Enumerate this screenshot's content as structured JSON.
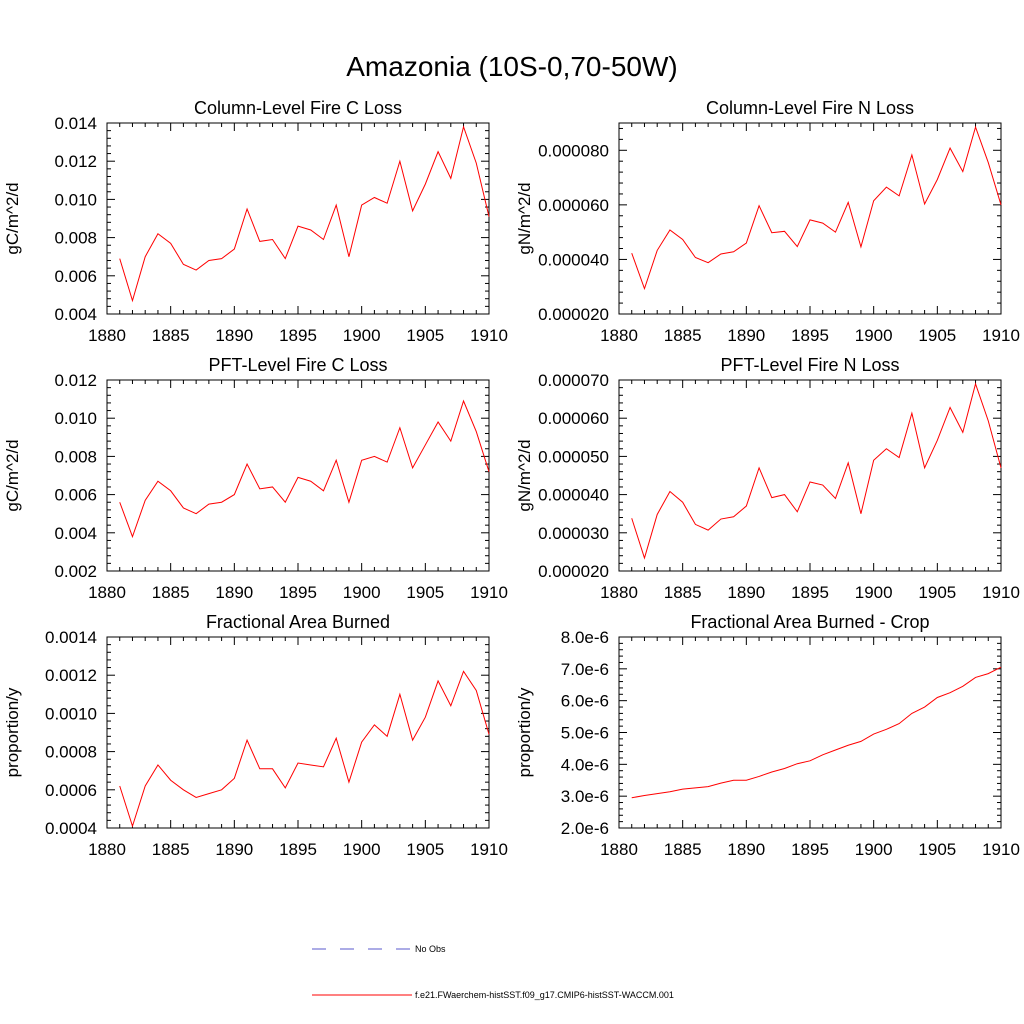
{
  "figure_title": "Amazonia (10S-0,70-50W)",
  "legend": [
    {
      "label": "No Obs",
      "color": "#5a5acd",
      "style": "dashed"
    },
    {
      "label": "f.e21.FWaerchem-histSST.f09_g17.CMIP6-histSST-WACCM.001",
      "color": "#ff0000",
      "style": "solid"
    }
  ],
  "chart_data": [
    {
      "type": "line",
      "title": "Column-Level Fire C Loss",
      "ylabel": "gC/m^2/d",
      "xlim": [
        1880,
        1910
      ],
      "ylim": [
        0.004,
        0.014
      ],
      "xticks": [
        "1880",
        "1885",
        "1890",
        "1895",
        "1900",
        "1905",
        "1910"
      ],
      "yticks": [
        "0.004",
        "0.006",
        "0.008",
        "0.010",
        "0.012",
        "0.014"
      ],
      "ytick_values": [
        0.004,
        0.006,
        0.008,
        0.01,
        0.012,
        0.014
      ],
      "x": [
        1881,
        1882,
        1883,
        1884,
        1885,
        1886,
        1887,
        1888,
        1889,
        1890,
        1891,
        1892,
        1893,
        1894,
        1895,
        1896,
        1897,
        1898,
        1899,
        1900,
        1901,
        1902,
        1903,
        1904,
        1905,
        1906,
        1907,
        1908,
        1909,
        1910
      ],
      "y": [
        0.0069,
        0.0047,
        0.007,
        0.0082,
        0.0077,
        0.0066,
        0.0063,
        0.0068,
        0.0069,
        0.0074,
        0.0095,
        0.0078,
        0.0079,
        0.0069,
        0.0086,
        0.0084,
        0.0079,
        0.0097,
        0.007,
        0.0097,
        0.0101,
        0.0098,
        0.012,
        0.0094,
        0.0108,
        0.0125,
        0.0111,
        0.0138,
        0.0119,
        0.0091
      ]
    },
    {
      "type": "line",
      "title": "Column-Level Fire N Loss",
      "ylabel": "gN/m^2/d",
      "xlim": [
        1880,
        1910
      ],
      "ylim": [
        2e-05,
        9e-05
      ],
      "xticks": [
        "1880",
        "1885",
        "1890",
        "1895",
        "1900",
        "1905",
        "1910"
      ],
      "yticks": [
        "0.000020",
        "0.000040",
        "0.000060",
        "0.000080"
      ],
      "ytick_values": [
        2e-05,
        4e-05,
        6e-05,
        8e-05
      ],
      "x": [
        1881,
        1882,
        1883,
        1884,
        1885,
        1886,
        1887,
        1888,
        1889,
        1890,
        1891,
        1892,
        1893,
        1894,
        1895,
        1896,
        1897,
        1898,
        1899,
        1900,
        1901,
        1902,
        1903,
        1904,
        1905,
        1906,
        1907,
        1908,
        1909,
        1910
      ],
      "y": [
        4.23e-05,
        2.93e-05,
        4.33e-05,
        5.08e-05,
        4.73e-05,
        4.07e-05,
        3.88e-05,
        4.2e-05,
        4.28e-05,
        4.6e-05,
        5.97e-05,
        4.98e-05,
        5.03e-05,
        4.47e-05,
        5.45e-05,
        5.33e-05,
        5e-05,
        6.09e-05,
        4.46e-05,
        6.15e-05,
        6.65e-05,
        6.33e-05,
        7.83e-05,
        6.03e-05,
        6.93e-05,
        8.08e-05,
        7.22e-05,
        8.85e-05,
        7.55e-05,
        6e-05
      ]
    },
    {
      "type": "line",
      "title": "PFT-Level Fire C Loss",
      "ylabel": "gC/m^2/d",
      "xlim": [
        1880,
        1910
      ],
      "ylim": [
        0.002,
        0.012
      ],
      "xticks": [
        "1880",
        "1885",
        "1890",
        "1895",
        "1900",
        "1905",
        "1910"
      ],
      "yticks": [
        "0.002",
        "0.004",
        "0.006",
        "0.008",
        "0.010",
        "0.012"
      ],
      "ytick_values": [
        0.002,
        0.004,
        0.006,
        0.008,
        0.01,
        0.012
      ],
      "x": [
        1881,
        1882,
        1883,
        1884,
        1885,
        1886,
        1887,
        1888,
        1889,
        1890,
        1891,
        1892,
        1893,
        1894,
        1895,
        1896,
        1897,
        1898,
        1899,
        1900,
        1901,
        1902,
        1903,
        1904,
        1905,
        1906,
        1907,
        1908,
        1909,
        1910
      ],
      "y": [
        0.0056,
        0.0038,
        0.0057,
        0.0067,
        0.0062,
        0.0053,
        0.005,
        0.0055,
        0.0056,
        0.006,
        0.0076,
        0.0063,
        0.0064,
        0.0056,
        0.0069,
        0.0067,
        0.0062,
        0.0078,
        0.0056,
        0.0078,
        0.008,
        0.0077,
        0.0095,
        0.0074,
        0.0086,
        0.0098,
        0.0088,
        0.0109,
        0.0093,
        0.0072
      ]
    },
    {
      "type": "line",
      "title": "PFT-Level Fire N Loss",
      "ylabel": "gN/m^2/d",
      "xlim": [
        1880,
        1910
      ],
      "ylim": [
        2e-05,
        7e-05
      ],
      "xticks": [
        "1880",
        "1885",
        "1890",
        "1895",
        "1900",
        "1905",
        "1910"
      ],
      "yticks": [
        "0.000020",
        "0.000030",
        "0.000040",
        "0.000050",
        "0.000060",
        "0.000070"
      ],
      "ytick_values": [
        2e-05,
        3e-05,
        4e-05,
        5e-05,
        6e-05,
        7e-05
      ],
      "x": [
        1881,
        1882,
        1883,
        1884,
        1885,
        1886,
        1887,
        1888,
        1889,
        1890,
        1891,
        1892,
        1893,
        1894,
        1895,
        1896,
        1897,
        1898,
        1899,
        1900,
        1901,
        1902,
        1903,
        1904,
        1905,
        1906,
        1907,
        1908,
        1909,
        1910
      ],
      "y": [
        3.38e-05,
        2.34e-05,
        3.48e-05,
        4.08e-05,
        3.8e-05,
        3.22e-05,
        3.07e-05,
        3.36e-05,
        3.42e-05,
        3.7e-05,
        4.7e-05,
        3.92e-05,
        4e-05,
        3.55e-05,
        4.33e-05,
        4.25e-05,
        3.9e-05,
        4.83e-05,
        3.5e-05,
        4.9e-05,
        5.2e-05,
        4.97e-05,
        6.13e-05,
        4.7e-05,
        5.42e-05,
        6.28e-05,
        5.63e-05,
        6.9e-05,
        5.93e-05,
        4.7e-05
      ]
    },
    {
      "type": "line",
      "title": "Fractional Area Burned",
      "ylabel": "proportion/y",
      "xlim": [
        1880,
        1910
      ],
      "ylim": [
        0.0004,
        0.0014
      ],
      "xticks": [
        "1880",
        "1885",
        "1890",
        "1895",
        "1900",
        "1905",
        "1910"
      ],
      "yticks": [
        "0.0004",
        "0.0006",
        "0.0008",
        "0.0010",
        "0.0012",
        "0.0014"
      ],
      "ytick_values": [
        0.0004,
        0.0006,
        0.0008,
        0.001,
        0.0012,
        0.0014
      ],
      "x": [
        1881,
        1882,
        1883,
        1884,
        1885,
        1886,
        1887,
        1888,
        1889,
        1890,
        1891,
        1892,
        1893,
        1894,
        1895,
        1896,
        1897,
        1898,
        1899,
        1900,
        1901,
        1902,
        1903,
        1904,
        1905,
        1906,
        1907,
        1908,
        1909,
        1910
      ],
      "y": [
        0.00062,
        0.00041,
        0.00062,
        0.00073,
        0.00065,
        0.0006,
        0.00056,
        0.00058,
        0.0006,
        0.00066,
        0.00086,
        0.00071,
        0.00071,
        0.00061,
        0.00074,
        0.00073,
        0.00072,
        0.00087,
        0.00064,
        0.00085,
        0.00094,
        0.00088,
        0.0011,
        0.00086,
        0.00098,
        0.00117,
        0.00104,
        0.00122,
        0.00112,
        0.00089
      ]
    },
    {
      "type": "line",
      "title": "Fractional Area Burned - Crop",
      "ylabel": "proportion/y",
      "xlim": [
        1880,
        1910
      ],
      "ylim": [
        2e-06,
        8e-06
      ],
      "xticks": [
        "1880",
        "1885",
        "1890",
        "1895",
        "1900",
        "1905",
        "1910"
      ],
      "yticks": [
        "2.0e-6",
        "3.0e-6",
        "4.0e-6",
        "5.0e-6",
        "6.0e-6",
        "7.0e-6",
        "8.0e-6"
      ],
      "ytick_values": [
        2e-06,
        3e-06,
        4e-06,
        5e-06,
        6e-06,
        7e-06,
        8e-06
      ],
      "x": [
        1881,
        1882,
        1883,
        1884,
        1885,
        1886,
        1887,
        1888,
        1889,
        1890,
        1891,
        1892,
        1893,
        1894,
        1895,
        1896,
        1897,
        1898,
        1899,
        1900,
        1901,
        1902,
        1903,
        1904,
        1905,
        1906,
        1907,
        1908,
        1909,
        1910
      ],
      "y": [
        2.95e-06,
        3.02e-06,
        3.08e-06,
        3.14e-06,
        3.22e-06,
        3.26e-06,
        3.3e-06,
        3.41e-06,
        3.5e-06,
        3.5e-06,
        3.62e-06,
        3.76e-06,
        3.87e-06,
        4.02e-06,
        4.11e-06,
        4.3e-06,
        4.45e-06,
        4.6e-06,
        4.72e-06,
        4.95e-06,
        5.1e-06,
        5.28e-06,
        5.6e-06,
        5.8e-06,
        6.1e-06,
        6.25e-06,
        6.45e-06,
        6.73e-06,
        6.85e-06,
        7.05e-06
      ]
    }
  ]
}
